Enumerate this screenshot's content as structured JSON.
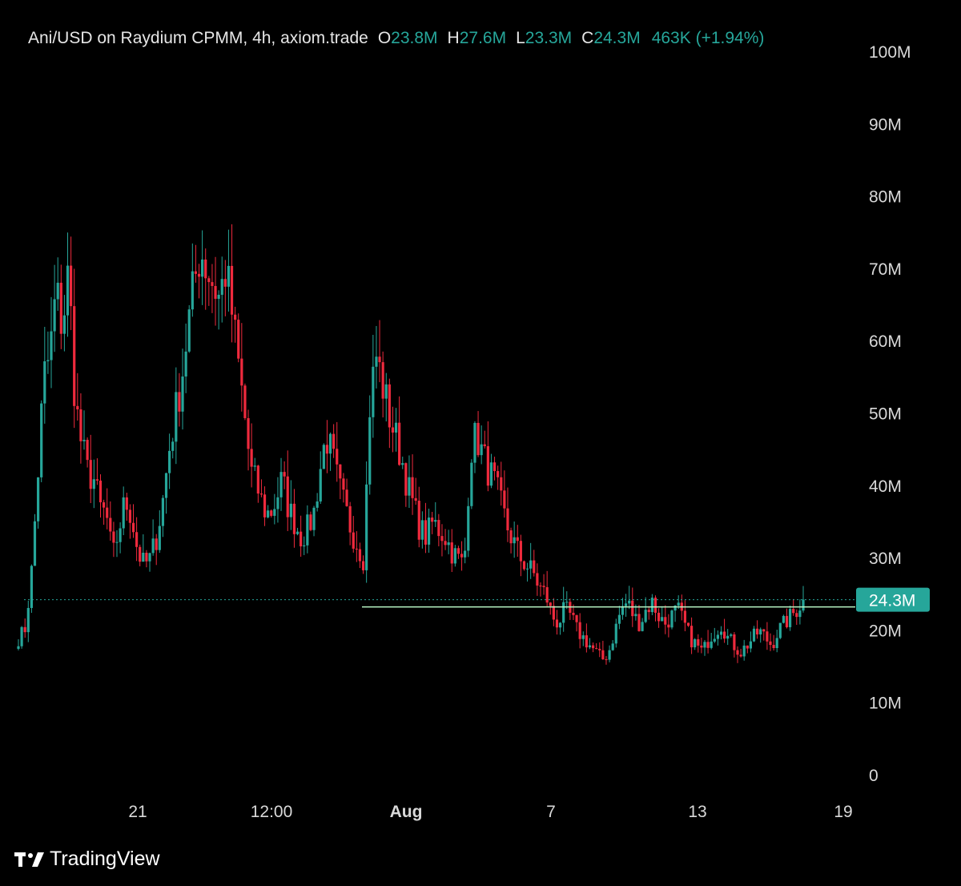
{
  "legend": {
    "symbol": "Ani/USD on Raydium CPMM, 4h, axiom.trade",
    "open_label": "O",
    "open": "23.8M",
    "high_label": "H",
    "high": "27.6M",
    "low_label": "L",
    "low": "23.3M",
    "close_label": "C",
    "close": "24.3M",
    "change": "463K (+1.94%)"
  },
  "brand": {
    "name": "TradingView",
    "icon": "tradingview-logo-icon"
  },
  "colors": {
    "up": "#26a69a",
    "down": "#ef2a3d",
    "background": "#000000",
    "text": "#d9d9d9",
    "horizontal_line": "#b8f5c4"
  },
  "chart_data": {
    "type": "candlestick",
    "interval": "4h",
    "yaxis": {
      "ticks": [
        "0",
        "10M",
        "20M",
        "30M",
        "40M",
        "50M",
        "60M",
        "70M",
        "80M",
        "90M",
        "100M"
      ],
      "ylim": [
        0,
        100000000
      ],
      "side": "right"
    },
    "xaxis": {
      "ticks": [
        "21",
        "12:00",
        "Aug",
        "7",
        "13",
        "19"
      ],
      "bold": [
        "Aug"
      ]
    },
    "grid": false,
    "last_price": {
      "label": "24.3M",
      "value": 24300000
    },
    "horizontal_line": {
      "value": 23300000,
      "from": "Aug"
    },
    "close_series_millions": [
      19,
      20,
      27,
      40,
      55,
      58,
      67,
      62,
      70,
      52,
      46,
      42,
      41,
      37,
      36,
      30,
      34,
      38,
      36,
      31,
      29,
      30,
      33,
      38,
      45,
      50,
      55,
      62,
      68,
      73,
      70,
      68,
      66,
      70,
      64,
      57,
      50,
      42,
      40,
      37,
      36,
      38,
      41,
      37,
      35,
      33,
      34,
      36,
      42,
      47,
      44,
      40,
      37,
      34,
      32,
      30,
      52,
      58,
      54,
      50,
      47,
      44,
      40,
      37,
      34,
      33,
      35,
      34,
      33,
      31,
      30,
      29,
      45,
      47,
      44,
      42,
      40,
      37,
      34,
      32,
      30,
      29,
      28,
      26,
      25,
      22,
      21,
      23,
      22,
      20,
      19,
      18,
      17,
      16,
      17,
      20,
      23,
      24,
      22,
      21,
      23,
      24,
      22,
      21,
      22,
      23,
      21,
      19,
      18,
      17,
      19,
      20,
      21,
      19,
      18,
      17,
      18,
      19,
      20,
      19,
      18,
      20,
      21,
      22,
      23,
      24.3
    ]
  }
}
